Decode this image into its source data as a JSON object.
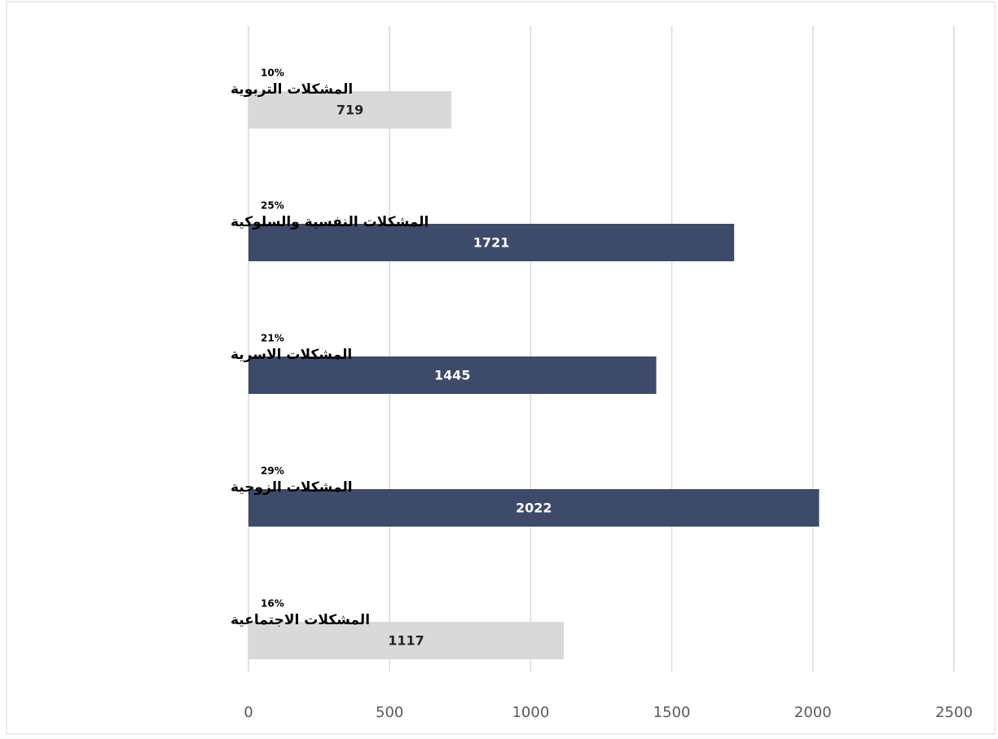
{
  "chart_data": {
    "type": "bar",
    "orientation": "horizontal",
    "categories": [
      "المشكلات التربوية",
      "المشكلات النفسية والسلوكية",
      "المشكلات الاسرية",
      "المشكلات الزوجية",
      "المشكلات الاجتماعية"
    ],
    "values": [
      719,
      1721,
      1445,
      2022,
      1117
    ],
    "colors": [
      "#d9d9d9",
      "#3d4a69",
      "#3d4a69",
      "#3d4a69",
      "#d9d9d9"
    ],
    "percent_values": [
      10,
      25,
      21,
      29,
      16
    ],
    "percent_labels": [
      "10%",
      "25%",
      "21%",
      "29%",
      "16%"
    ],
    "xlim": [
      0,
      2500
    ],
    "xticks": [
      0,
      500,
      1000,
      1500,
      2000,
      2500
    ],
    "grid": true
  }
}
